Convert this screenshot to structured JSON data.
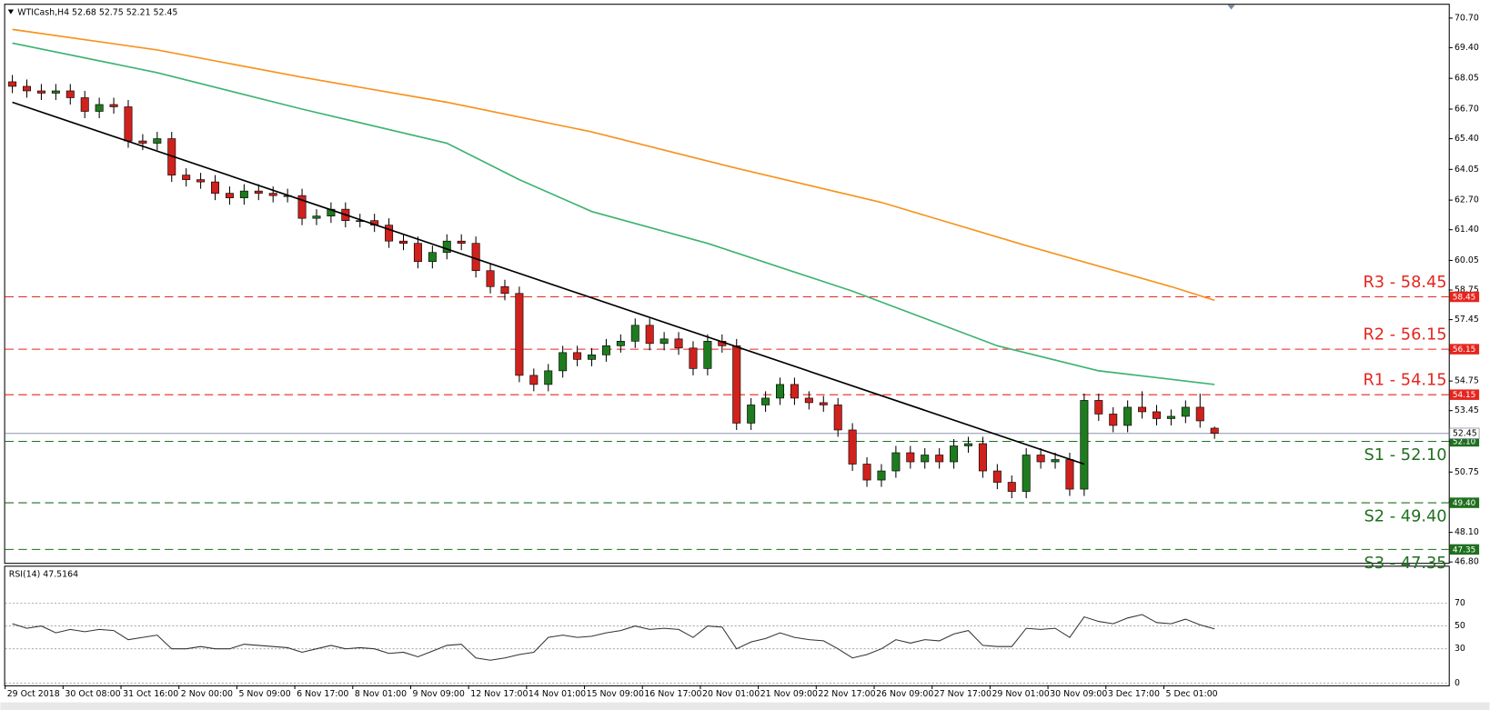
{
  "chart_data": [
    {
      "type": "candlestick",
      "symbol": "WTICash,H4",
      "categories": [
        "29 Oct 2018",
        null,
        null,
        null,
        "30 Oct 08:00",
        null,
        null,
        null,
        "31 Oct 16:00",
        null,
        null,
        null,
        "2 Nov 00:00",
        null,
        null,
        null,
        "5 Nov 09:00",
        null,
        null,
        null,
        "6 Nov 17:00",
        null,
        null,
        null,
        "8 Nov 01:00",
        null,
        null,
        null,
        "9 Nov 09:00",
        null,
        null,
        null,
        "12 Nov 17:00",
        null,
        null,
        null,
        "14 Nov 01:00",
        null,
        null,
        null,
        "15 Nov 09:00",
        null,
        null,
        null,
        "16 Nov 17:00",
        null,
        null,
        null,
        "20 Nov 01:00",
        null,
        null,
        null,
        "21 Nov 09:00",
        null,
        null,
        null,
        "22 Nov 17:00",
        null,
        null,
        null,
        "26 Nov 09:00",
        null,
        null,
        null,
        "27 Nov 17:00",
        null,
        null,
        null,
        "29 Nov 01:00",
        null,
        null,
        null,
        "30 Nov 09:00",
        null,
        null,
        null,
        "3 Dec 17:00",
        null,
        null,
        null,
        "5 Dec 01:00",
        null,
        null,
        null
      ],
      "open": [
        67.9,
        67.7,
        67.5,
        67.4,
        67.5,
        67.2,
        66.6,
        66.9,
        66.8,
        65.3,
        65.2,
        65.4,
        63.8,
        63.6,
        63.5,
        63.0,
        62.8,
        63.1,
        63.0,
        62.9,
        62.9,
        61.9,
        62.0,
        62.3,
        61.8,
        61.8,
        61.6,
        60.9,
        60.8,
        60.0,
        60.4,
        60.9,
        60.8,
        59.6,
        58.9,
        58.6,
        55.0,
        54.6,
        55.2,
        56.0,
        55.7,
        55.9,
        56.3,
        56.5,
        57.2,
        56.4,
        56.6,
        56.2,
        55.3,
        56.5,
        56.3,
        52.9,
        53.7,
        54.0,
        54.6,
        54.0,
        53.8,
        53.7,
        52.6,
        51.1,
        50.4,
        50.8,
        51.6,
        51.2,
        51.5,
        51.2,
        51.9,
        52.0,
        50.8,
        50.3,
        49.9,
        51.5,
        51.2,
        51.3,
        50.0,
        53.9,
        53.3,
        52.8,
        53.6,
        53.4,
        53.1,
        53.2,
        53.6,
        52.68
      ],
      "high": [
        68.2,
        68.0,
        67.8,
        67.8,
        67.8,
        67.5,
        67.2,
        67.2,
        67.1,
        65.6,
        65.7,
        65.7,
        64.1,
        63.9,
        63.8,
        63.3,
        63.4,
        63.4,
        63.3,
        63.2,
        63.2,
        62.3,
        62.6,
        62.6,
        62.1,
        62.1,
        61.9,
        61.2,
        61.1,
        60.7,
        61.2,
        61.2,
        61.1,
        59.9,
        59.2,
        58.9,
        55.3,
        55.5,
        56.3,
        56.3,
        56.2,
        56.6,
        56.8,
        57.5,
        57.5,
        56.9,
        56.9,
        56.5,
        56.8,
        56.8,
        56.6,
        54.0,
        54.3,
        54.9,
        54.9,
        54.3,
        54.1,
        54.0,
        52.9,
        51.4,
        51.1,
        51.9,
        51.9,
        51.8,
        51.8,
        52.2,
        52.3,
        52.3,
        51.1,
        50.6,
        51.8,
        51.8,
        51.6,
        51.6,
        54.2,
        54.2,
        53.6,
        53.9,
        54.3,
        53.7,
        53.5,
        53.9,
        54.2,
        52.75
      ],
      "low": [
        67.4,
        67.2,
        67.1,
        67.1,
        66.9,
        66.3,
        66.3,
        66.5,
        65.0,
        64.9,
        64.9,
        63.5,
        63.3,
        63.2,
        62.7,
        62.5,
        62.5,
        62.7,
        62.6,
        62.6,
        61.6,
        61.6,
        61.7,
        61.5,
        61.5,
        61.3,
        60.6,
        60.5,
        59.7,
        59.7,
        60.1,
        60.5,
        59.3,
        58.6,
        58.3,
        54.7,
        54.3,
        54.3,
        54.9,
        55.4,
        55.4,
        55.6,
        56.0,
        56.2,
        56.1,
        56.1,
        55.9,
        55.0,
        55.0,
        56.0,
        52.6,
        52.6,
        53.4,
        53.7,
        53.7,
        53.5,
        53.4,
        52.3,
        50.8,
        50.1,
        50.1,
        50.5,
        50.9,
        50.9,
        50.9,
        50.9,
        51.6,
        50.5,
        50.0,
        49.6,
        49.6,
        50.9,
        50.9,
        49.7,
        49.7,
        53.0,
        52.5,
        52.5,
        53.1,
        52.8,
        52.8,
        52.9,
        52.7,
        52.21
      ],
      "close": [
        67.7,
        67.5,
        67.4,
        67.5,
        67.2,
        66.6,
        66.9,
        66.8,
        65.3,
        65.2,
        65.4,
        63.8,
        63.6,
        63.5,
        63.0,
        62.8,
        63.1,
        63.0,
        62.9,
        62.9,
        61.9,
        62.0,
        62.3,
        61.8,
        61.8,
        61.6,
        60.9,
        60.8,
        60.0,
        60.4,
        60.9,
        60.8,
        59.6,
        58.9,
        58.6,
        55.0,
        54.6,
        55.2,
        56.0,
        55.7,
        55.9,
        56.3,
        56.5,
        57.2,
        56.4,
        56.6,
        56.2,
        55.3,
        56.5,
        56.3,
        52.9,
        53.7,
        54.0,
        54.6,
        54.0,
        53.8,
        53.7,
        52.6,
        51.1,
        50.4,
        50.8,
        51.6,
        51.2,
        51.5,
        51.2,
        51.9,
        52.0,
        50.8,
        50.3,
        49.9,
        51.5,
        51.2,
        51.3,
        50.0,
        53.9,
        53.3,
        52.8,
        53.6,
        53.4,
        53.1,
        53.2,
        53.6,
        53.0,
        52.45
      ],
      "up_color": "#1e7b1e",
      "down_color": "#d0211c",
      "ylim": [
        46.76,
        71.16
      ],
      "yticks": [
        {
          "value": 70.7,
          "label": "70.70"
        },
        {
          "value": 69.4,
          "label": "69.40"
        },
        68.05,
        {
          "value": 66.7,
          "label": "66.70"
        },
        {
          "value": 65.4,
          "label": "65.40"
        },
        64.05,
        {
          "value": 62.7,
          "label": "62.70"
        },
        {
          "value": 61.4,
          "label": "61.40"
        },
        60.05,
        58.75,
        57.45,
        {
          "value": 56.1,
          "label": "56.10"
        },
        54.75,
        53.45,
        {
          "value": 52.1,
          "label": "52.10"
        },
        50.75,
        49.45,
        {
          "value": 48.1,
          "label": "48.10"
        },
        {
          "value": 46.8,
          "label": "46.80"
        }
      ],
      "moving_averages": [
        {
          "color": "#f7931e",
          "x": [
            0,
            10,
            20,
            30,
            40,
            50,
            60,
            70,
            80,
            83
          ],
          "values": [
            70.2,
            69.3,
            68.1,
            67.0,
            65.7,
            64.1,
            62.6,
            60.7,
            58.9,
            58.3
          ]
        },
        {
          "color": "#3cb371",
          "x": [
            0,
            10,
            20,
            30,
            35,
            40,
            48,
            58,
            68,
            75,
            83
          ],
          "values": [
            69.6,
            68.3,
            66.7,
            65.2,
            63.6,
            62.2,
            60.8,
            58.7,
            56.3,
            55.2,
            54.6
          ]
        }
      ],
      "trendline": {
        "color": "#000000",
        "x": [
          0,
          74
        ],
        "values": [
          67.0,
          51.1
        ]
      },
      "levels": [
        {
          "label": "R3 - 58.45",
          "value": 58.45,
          "axis_label": "58.45",
          "color": "#e5261f"
        },
        {
          "label": "R2 - 56.15",
          "value": 56.15,
          "axis_label": "56.15",
          "color": "#e5261f"
        },
        {
          "label": "R1 - 54.15",
          "value": 54.15,
          "axis_label": "54.15",
          "color": "#e5261f"
        },
        {
          "label": "S1 - 52.10",
          "value": 52.1,
          "axis_label": "52.10",
          "color": "#1f6f1f"
        },
        {
          "label": "S2 - 49.40",
          "value": 49.4,
          "axis_label": "49.40",
          "color": "#1f6f1f"
        },
        {
          "label": "S3 - 47.35",
          "value": 47.35,
          "axis_label": "47.35",
          "color": "#1f6f1f"
        }
      ]
    },
    {
      "type": "line",
      "title": "RSI(14)",
      "color": "#333333",
      "values": [
        52,
        48,
        50,
        44,
        47,
        45,
        47,
        46,
        38,
        40,
        42,
        30,
        30,
        32,
        30,
        30,
        34,
        33,
        32,
        31,
        27,
        30,
        33,
        30,
        31,
        30,
        26,
        27,
        23,
        28,
        33,
        34,
        22,
        20,
        22,
        25,
        27,
        40,
        42,
        40,
        41,
        44,
        46,
        50,
        47,
        48,
        47,
        40,
        50,
        49,
        30,
        36,
        39,
        44,
        40,
        38,
        37,
        30,
        22,
        25,
        30,
        38,
        35,
        38,
        37,
        43,
        46,
        33,
        32,
        32,
        48,
        47,
        48,
        40,
        58,
        54,
        52,
        57,
        60,
        53,
        52,
        56,
        51,
        47.5164
      ],
      "ylim": [
        -2,
        102
      ],
      "yticks": [
        0,
        30,
        50,
        70
      ]
    }
  ]
}
